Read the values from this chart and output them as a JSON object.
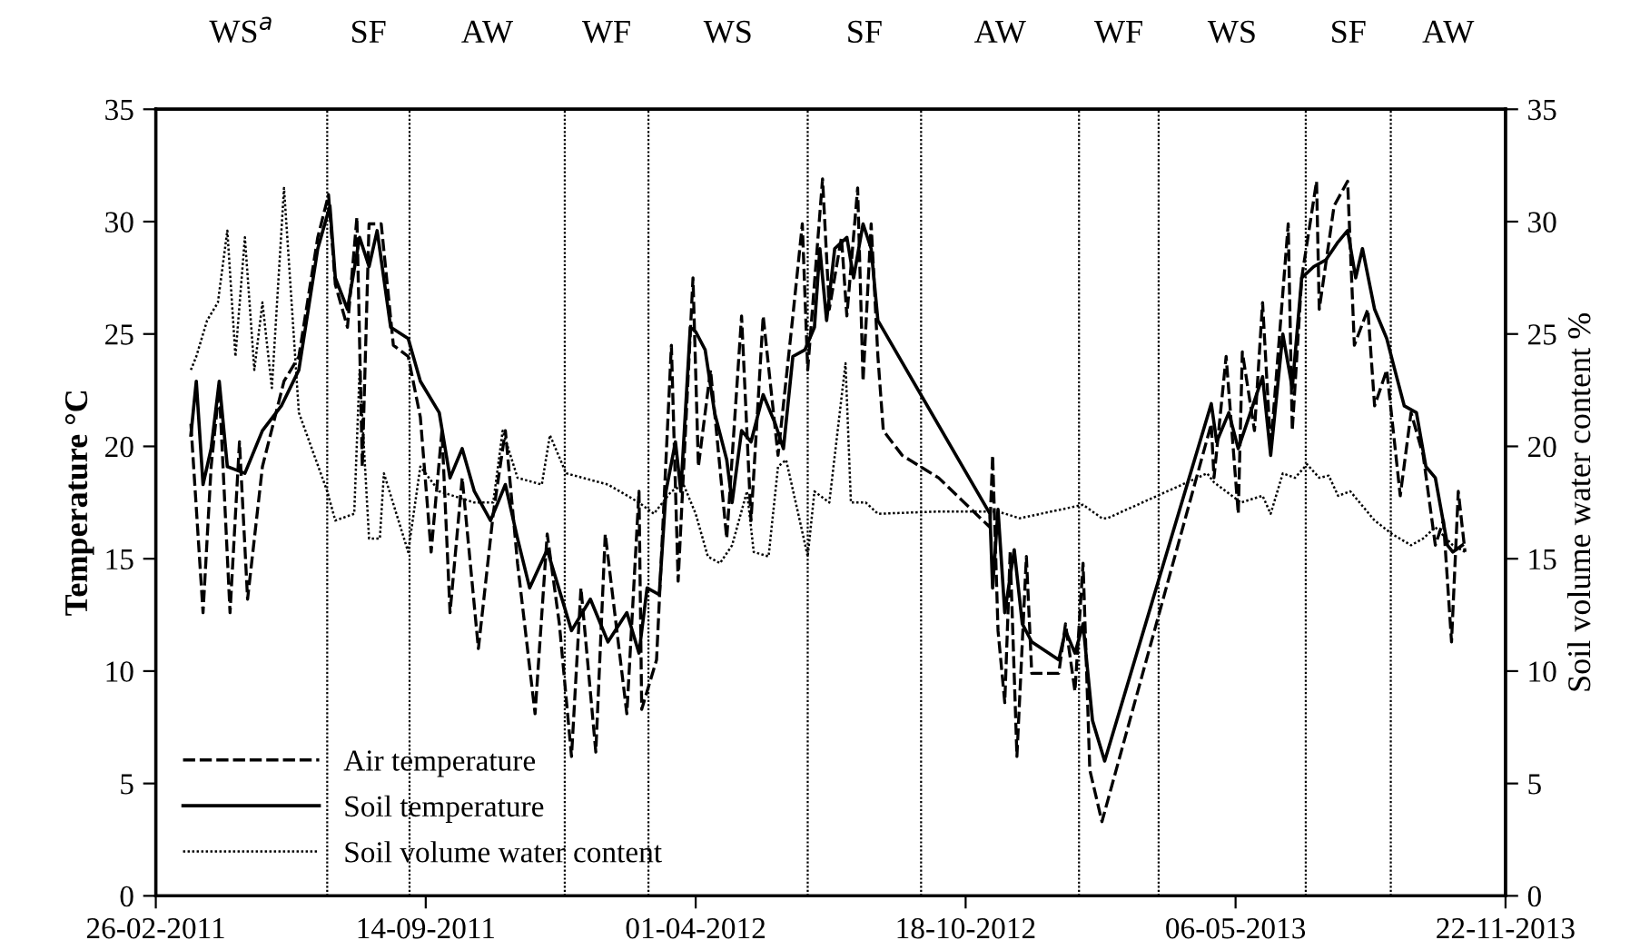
{
  "chart_data": {
    "type": "line",
    "xlabel": null,
    "ylabel": "Temperature °C",
    "y2label": "Soil volume water content %",
    "xlim": [
      "2011-02-26",
      "2013-11-22"
    ],
    "xticks": [
      {
        "value": "2011-02-26",
        "label": "26-02-2011"
      },
      {
        "value": "2011-09-14",
        "label": "14-09-2011"
      },
      {
        "value": "2012-04-01",
        "label": "01-04-2012"
      },
      {
        "value": "2012-10-18",
        "label": "18-10-2012"
      },
      {
        "value": "2013-05-06",
        "label": "06-05-2013"
      },
      {
        "value": "2013-11-22",
        "label": "22-11-2013"
      }
    ],
    "ylim": [
      0,
      35
    ],
    "yticks": [
      0,
      5,
      10,
      15,
      20,
      25,
      30,
      35
    ],
    "y2lim": [
      0,
      35
    ],
    "y2ticks": [
      0,
      5,
      10,
      15,
      20,
      25,
      30,
      35
    ],
    "legend": "bottom left",
    "series": [
      {
        "name": "Air temperature",
        "line_style": "dashed",
        "color": "#000000",
        "x": [
          "2011-03-24",
          "2011-04-02",
          "2011-04-08",
          "2011-04-14",
          "2011-04-22",
          "2011-04-29",
          "2011-05-05",
          "2011-05-16",
          "2011-06-01",
          "2011-06-12",
          "2011-06-26",
          "2011-07-04",
          "2011-07-09",
          "2011-07-18",
          "2011-07-25",
          "2011-07-29",
          "2011-08-03",
          "2011-08-12",
          "2011-08-21",
          "2011-09-01",
          "2011-09-10",
          "2011-09-18",
          "2011-09-26",
          "2011-10-02",
          "2011-10-11",
          "2011-10-23",
          "2011-11-03",
          "2011-11-12",
          "2011-11-21",
          "2011-12-04",
          "2011-12-13",
          "2011-12-22",
          "2011-12-31",
          "2012-01-07",
          "2012-01-18",
          "2012-01-25",
          "2012-02-10",
          "2012-02-19",
          "2012-02-21",
          "2012-03-03",
          "2012-03-14",
          "2012-03-19",
          "2012-03-30",
          "2012-04-03",
          "2012-04-12",
          "2012-04-24",
          "2012-05-05",
          "2012-05-12",
          "2012-05-21",
          "2012-06-01",
          "2012-06-12",
          "2012-06-19",
          "2012-06-23",
          "2012-07-04",
          "2012-07-09",
          "2012-07-18",
          "2012-07-22",
          "2012-07-30",
          "2012-08-03",
          "2012-08-09",
          "2012-08-14",
          "2012-08-18",
          "2012-09-01",
          "2012-09-28",
          "2012-11-05",
          "2012-11-07",
          "2012-11-11",
          "2012-11-16",
          "2012-11-20",
          "2012-11-25",
          "2012-12-02",
          "2012-12-06",
          "2012-12-26",
          "2012-12-31",
          "2013-01-07",
          "2013-01-13",
          "2013-01-18",
          "2013-01-27",
          "2013-04-18",
          "2013-04-20",
          "2013-04-29",
          "2013-05-08",
          "2013-05-11",
          "2013-05-20",
          "2013-05-26",
          "2013-06-01",
          "2013-06-14",
          "2013-06-17",
          "2013-06-24",
          "2013-07-05",
          "2013-07-07",
          "2013-07-18",
          "2013-07-28",
          "2013-08-02",
          "2013-08-12",
          "2013-08-17",
          "2013-08-26",
          "2013-09-05",
          "2013-09-13",
          "2013-09-22",
          "2013-10-01",
          "2013-10-07",
          "2013-10-13",
          "2013-10-18",
          "2013-10-23"
        ],
        "values": [
          21.0,
          12.6,
          19.1,
          22.6,
          12.6,
          20.2,
          13.2,
          19.1,
          22.9,
          24.0,
          29.3,
          31.2,
          27.2,
          25.3,
          30.2,
          19.1,
          29.9,
          29.9,
          24.5,
          24.0,
          21.3,
          15.3,
          20.7,
          12.6,
          18.6,
          11.0,
          17.0,
          20.7,
          14.8,
          8.1,
          16.1,
          12.1,
          6.2,
          13.7,
          6.4,
          16.1,
          8.1,
          18.0,
          8.3,
          10.5,
          24.5,
          14.0,
          27.5,
          19.1,
          23.4,
          15.9,
          25.8,
          16.7,
          25.8,
          19.6,
          25.8,
          29.9,
          23.4,
          31.9,
          26.1,
          29.3,
          25.8,
          31.5,
          22.9,
          29.9,
          24.0,
          20.7,
          19.6,
          18.6,
          16.4,
          19.6,
          11.8,
          8.6,
          15.3,
          6.2,
          15.1,
          9.9,
          9.9,
          12.1,
          9.1,
          14.8,
          5.6,
          3.3,
          21.0,
          18.6,
          24.0,
          17.0,
          24.2,
          20.7,
          26.4,
          19.9,
          29.9,
          20.7,
          27.5,
          31.8,
          26.1,
          30.7,
          31.8,
          24.5,
          26.1,
          21.8,
          23.4,
          17.8,
          21.5,
          19.6,
          15.6,
          16.7,
          11.3,
          18.0,
          15.3
        ]
      },
      {
        "name": "Soil temperature",
        "line_style": "solid",
        "color": "#000000",
        "x": [
          "2011-03-24",
          "2011-03-28",
          "2011-04-02",
          "2011-04-08",
          "2011-04-14",
          "2011-04-20",
          "2011-05-03",
          "2011-05-16",
          "2011-05-30",
          "2011-06-12",
          "2011-06-26",
          "2011-07-05",
          "2011-07-09",
          "2011-07-18",
          "2011-07-27",
          "2011-08-03",
          "2011-08-09",
          "2011-08-19",
          "2011-09-01",
          "2011-09-10",
          "2011-09-24",
          "2011-10-02",
          "2011-10-11",
          "2011-10-20",
          "2011-11-01",
          "2011-11-12",
          "2011-11-21",
          "2011-11-30",
          "2011-12-13",
          "2011-12-31",
          "2012-01-14",
          "2012-01-27",
          "2012-02-10",
          "2012-02-19",
          "2012-02-25",
          "2012-03-05",
          "2012-03-10",
          "2012-03-17",
          "2012-03-21",
          "2012-03-28",
          "2012-04-01",
          "2012-04-08",
          "2012-04-15",
          "2012-04-24",
          "2012-04-28",
          "2012-05-05",
          "2012-05-12",
          "2012-05-21",
          "2012-05-30",
          "2012-06-05",
          "2012-06-12",
          "2012-06-21",
          "2012-06-28",
          "2012-07-02",
          "2012-07-07",
          "2012-07-13",
          "2012-07-22",
          "2012-07-27",
          "2012-08-03",
          "2012-08-09",
          "2012-08-14",
          "2012-11-05",
          "2012-11-07",
          "2012-11-11",
          "2012-11-16",
          "2012-11-23",
          "2012-11-29",
          "2012-12-06",
          "2012-12-26",
          "2012-12-31",
          "2013-01-07",
          "2013-01-13",
          "2013-01-20",
          "2013-01-29",
          "2013-04-18",
          "2013-04-22",
          "2013-05-01",
          "2013-05-08",
          "2013-05-17",
          "2013-05-26",
          "2013-06-01",
          "2013-06-10",
          "2013-06-17",
          "2013-06-24",
          "2013-07-03",
          "2013-07-12",
          "2013-07-21",
          "2013-07-28",
          "2013-08-03",
          "2013-08-08",
          "2013-08-17",
          "2013-08-26",
          "2013-09-01",
          "2013-09-08",
          "2013-09-17",
          "2013-09-24",
          "2013-10-01",
          "2013-10-10",
          "2013-10-14",
          "2013-10-21"
        ],
        "values": [
          20.5,
          22.9,
          18.3,
          19.9,
          22.9,
          19.1,
          18.8,
          20.7,
          21.8,
          23.4,
          28.8,
          30.7,
          27.5,
          26.1,
          29.3,
          28.0,
          29.6,
          25.3,
          24.8,
          22.9,
          21.5,
          18.6,
          19.9,
          18.0,
          16.7,
          18.3,
          15.9,
          13.7,
          15.4,
          11.8,
          13.2,
          11.3,
          12.6,
          10.8,
          13.7,
          13.4,
          18.0,
          20.2,
          18.0,
          25.3,
          25.1,
          24.3,
          21.5,
          19.4,
          17.5,
          20.7,
          20.2,
          22.3,
          21.0,
          19.9,
          24.0,
          24.3,
          25.3,
          28.8,
          25.6,
          28.8,
          29.3,
          27.5,
          29.9,
          28.8,
          25.6,
          17.0,
          13.7,
          17.2,
          12.6,
          15.4,
          12.1,
          11.3,
          10.5,
          11.8,
          10.8,
          12.1,
          7.8,
          6.0,
          21.9,
          20.2,
          21.5,
          19.9,
          21.5,
          23.1,
          19.6,
          25.0,
          22.6,
          27.5,
          28.0,
          28.3,
          29.1,
          29.6,
          27.5,
          28.8,
          26.1,
          24.8,
          23.4,
          21.8,
          21.5,
          19.1,
          18.6,
          15.6,
          15.3,
          15.6
        ]
      },
      {
        "name": "Soil volume water content",
        "line_style": "dotted",
        "color": "#000000",
        "x": [
          "2011-03-24",
          "2011-03-28",
          "2011-04-05",
          "2011-04-13",
          "2011-04-20",
          "2011-04-26",
          "2011-05-03",
          "2011-05-10",
          "2011-05-16",
          "2011-05-23",
          "2011-06-01",
          "2011-06-12",
          "2011-07-03",
          "2011-07-09",
          "2011-07-23",
          "2011-07-27",
          "2011-08-03",
          "2011-08-11",
          "2011-08-14",
          "2011-09-01",
          "2011-09-10",
          "2011-09-24",
          "2011-10-20",
          "2011-11-03",
          "2011-11-10",
          "2011-11-21",
          "2011-12-09",
          "2011-12-15",
          "2011-12-27",
          "2012-01-27",
          "2012-02-19",
          "2012-03-01",
          "2012-03-14",
          "2012-03-23",
          "2012-04-01",
          "2012-04-10",
          "2012-04-19",
          "2012-04-28",
          "2012-05-09",
          "2012-05-14",
          "2012-05-25",
          "2012-06-01",
          "2012-06-07",
          "2012-06-16",
          "2012-06-23",
          "2012-06-28",
          "2012-07-09",
          "2012-07-21",
          "2012-07-25",
          "2012-08-05",
          "2012-08-14",
          "2012-09-28",
          "2012-11-11",
          "2012-11-27",
          "2013-01-13",
          "2013-01-27",
          "2013-01-31",
          "2013-04-15",
          "2013-04-20",
          "2013-05-10",
          "2013-05-26",
          "2013-06-01",
          "2013-06-10",
          "2013-06-19",
          "2013-06-28",
          "2013-07-07",
          "2013-07-14",
          "2013-07-21",
          "2013-07-30",
          "2013-08-17",
          "2013-08-30",
          "2013-09-13",
          "2013-09-22",
          "2013-10-01",
          "2013-10-14",
          "2013-10-23"
        ],
        "values": [
          23.4,
          24.0,
          25.6,
          26.4,
          29.6,
          24.0,
          29.3,
          23.4,
          26.4,
          22.6,
          31.5,
          21.5,
          18.0,
          16.7,
          17.0,
          23.4,
          15.9,
          15.9,
          18.8,
          15.3,
          19.1,
          18.0,
          17.5,
          17.5,
          20.7,
          18.6,
          18.3,
          20.5,
          18.8,
          18.3,
          17.5,
          17.0,
          18.0,
          18.3,
          17.0,
          15.1,
          14.8,
          15.6,
          18.0,
          15.3,
          15.1,
          19.1,
          19.4,
          17.0,
          15.1,
          18.0,
          17.5,
          23.7,
          17.5,
          17.5,
          17.0,
          17.1,
          17.1,
          16.8,
          17.4,
          16.8,
          16.8,
          18.8,
          18.4,
          17.5,
          17.8,
          17.0,
          18.8,
          18.6,
          19.2,
          18.6,
          18.7,
          17.8,
          18.0,
          16.7,
          16.1,
          15.6,
          15.9,
          16.4,
          15.6,
          15.3
        ]
      }
    ],
    "ref_lines": [
      {
        "axis": "x",
        "value": "2011-07-03",
        "label": null,
        "color": "#000000",
        "line_style": "dotted"
      },
      {
        "axis": "x",
        "value": "2011-09-02",
        "label": null,
        "color": "#000000",
        "line_style": "dotted"
      },
      {
        "axis": "x",
        "value": "2011-12-26",
        "label": null,
        "color": "#000000",
        "line_style": "dotted"
      },
      {
        "axis": "x",
        "value": "2012-02-26",
        "label": null,
        "color": "#000000",
        "line_style": "dotted"
      },
      {
        "axis": "x",
        "value": "2012-06-23",
        "label": null,
        "color": "#000000",
        "line_style": "dotted"
      },
      {
        "axis": "x",
        "value": "2012-09-15",
        "label": null,
        "color": "#000000",
        "line_style": "dotted"
      },
      {
        "axis": "x",
        "value": "2013-01-10",
        "label": null,
        "color": "#000000",
        "line_style": "dotted"
      },
      {
        "axis": "x",
        "value": "2013-03-10",
        "label": null,
        "color": "#000000",
        "line_style": "dotted"
      },
      {
        "axis": "x",
        "value": "2013-06-27",
        "label": null,
        "color": "#000000",
        "line_style": "dotted"
      },
      {
        "axis": "x",
        "value": "2013-08-29",
        "label": null,
        "color": "#000000",
        "line_style": "dotted"
      }
    ],
    "annotations": [
      "WS$^{a}$",
      "SF",
      "AW",
      "WF",
      "WS",
      "SF",
      "AW",
      "WF",
      "WS",
      "SF",
      "AW"
    ]
  }
}
